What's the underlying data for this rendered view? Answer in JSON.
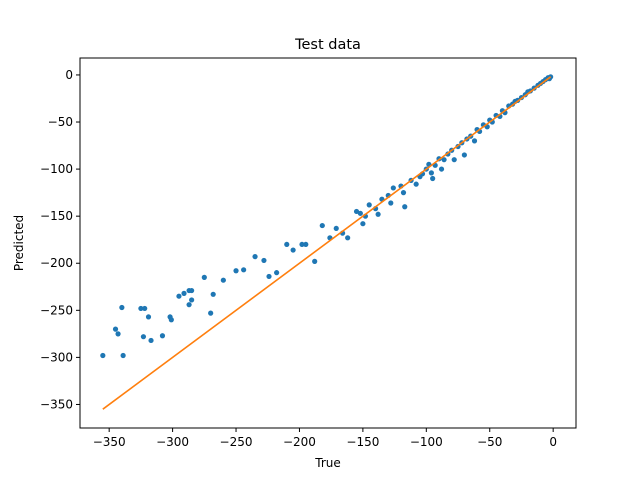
{
  "chart_data": {
    "type": "scatter",
    "title": "Test data",
    "xlabel": "True",
    "ylabel": "Predicted",
    "xlim": [
      -373,
      18
    ],
    "ylim": [
      -375,
      18
    ],
    "xticks": [
      -350,
      -300,
      -250,
      -200,
      -150,
      -100,
      -50,
      0
    ],
    "yticks": [
      -350,
      -300,
      -250,
      -200,
      -150,
      -100,
      -50,
      0
    ],
    "grid": false,
    "colors": {
      "points": "#1f77b4",
      "line": "#ff7f0e"
    },
    "series": [
      {
        "type": "scatter",
        "points": [
          [
            -355,
            -298
          ],
          [
            -345,
            -270
          ],
          [
            -343,
            -275
          ],
          [
            -340,
            -247
          ],
          [
            -339,
            -298
          ],
          [
            -325,
            -248
          ],
          [
            -322,
            -248
          ],
          [
            -323,
            -278
          ],
          [
            -319,
            -257
          ],
          [
            -317,
            -282
          ],
          [
            -308,
            -277
          ],
          [
            -302,
            -257
          ],
          [
            -301,
            -260
          ],
          [
            -295,
            -235
          ],
          [
            -291,
            -232
          ],
          [
            -287,
            -229
          ],
          [
            -285,
            -229
          ],
          [
            -285,
            -239
          ],
          [
            -287,
            -244
          ],
          [
            -275,
            -215
          ],
          [
            -270,
            -253
          ],
          [
            -268,
            -233
          ],
          [
            -260,
            -218
          ],
          [
            -250,
            -208
          ],
          [
            -244,
            -207
          ],
          [
            -235,
            -193
          ],
          [
            -228,
            -197
          ],
          [
            -224,
            -214
          ],
          [
            -218,
            -210
          ],
          [
            -210,
            -180
          ],
          [
            -205,
            -186
          ],
          [
            -198,
            -180
          ],
          [
            -195,
            -180
          ],
          [
            -188,
            -198
          ],
          [
            -182,
            -160
          ],
          [
            -176,
            -173
          ],
          [
            -171,
            -163
          ],
          [
            -166,
            -168
          ],
          [
            -162,
            -173
          ],
          [
            -155,
            -145
          ],
          [
            -152,
            -147
          ],
          [
            -150,
            -158
          ],
          [
            -148,
            -150
          ],
          [
            -145,
            -138
          ],
          [
            -140,
            -142
          ],
          [
            -138,
            -148
          ],
          [
            -135,
            -132
          ],
          [
            -130,
            -128
          ],
          [
            -128,
            -136
          ],
          [
            -126,
            -120
          ],
          [
            -120,
            -118
          ],
          [
            -118,
            -125
          ],
          [
            -117,
            -140
          ],
          [
            -112,
            -112
          ],
          [
            -108,
            -116
          ],
          [
            -105,
            -108
          ],
          [
            -103,
            -105
          ],
          [
            -100,
            -100
          ],
          [
            -98,
            -95
          ],
          [
            -96,
            -104
          ],
          [
            -95,
            -110
          ],
          [
            -93,
            -96
          ],
          [
            -90,
            -89
          ],
          [
            -88,
            -100
          ],
          [
            -86,
            -90
          ],
          [
            -83,
            -84
          ],
          [
            -80,
            -80
          ],
          [
            -78,
            -90
          ],
          [
            -75,
            -76
          ],
          [
            -72,
            -72
          ],
          [
            -70,
            -85
          ],
          [
            -68,
            -68
          ],
          [
            -65,
            -65
          ],
          [
            -62,
            -70
          ],
          [
            -60,
            -58
          ],
          [
            -58,
            -60
          ],
          [
            -55,
            -53
          ],
          [
            -52,
            -55
          ],
          [
            -50,
            -48
          ],
          [
            -48,
            -50
          ],
          [
            -45,
            -43
          ],
          [
            -42,
            -44
          ],
          [
            -40,
            -38
          ],
          [
            -38,
            -40
          ],
          [
            -35,
            -33
          ],
          [
            -32,
            -31
          ],
          [
            -30,
            -28
          ],
          [
            -28,
            -27
          ],
          [
            -25,
            -24
          ],
          [
            -22,
            -21
          ],
          [
            -20,
            -18
          ],
          [
            -18,
            -17
          ],
          [
            -15,
            -14
          ],
          [
            -12,
            -11
          ],
          [
            -10,
            -9
          ],
          [
            -8,
            -7
          ],
          [
            -6,
            -5
          ],
          [
            -4,
            -3
          ],
          [
            -2,
            -2
          ],
          [
            -3,
            -4
          ]
        ]
      },
      {
        "type": "line",
        "points": [
          [
            -355,
            -355
          ],
          [
            -2,
            -2
          ]
        ]
      }
    ]
  }
}
